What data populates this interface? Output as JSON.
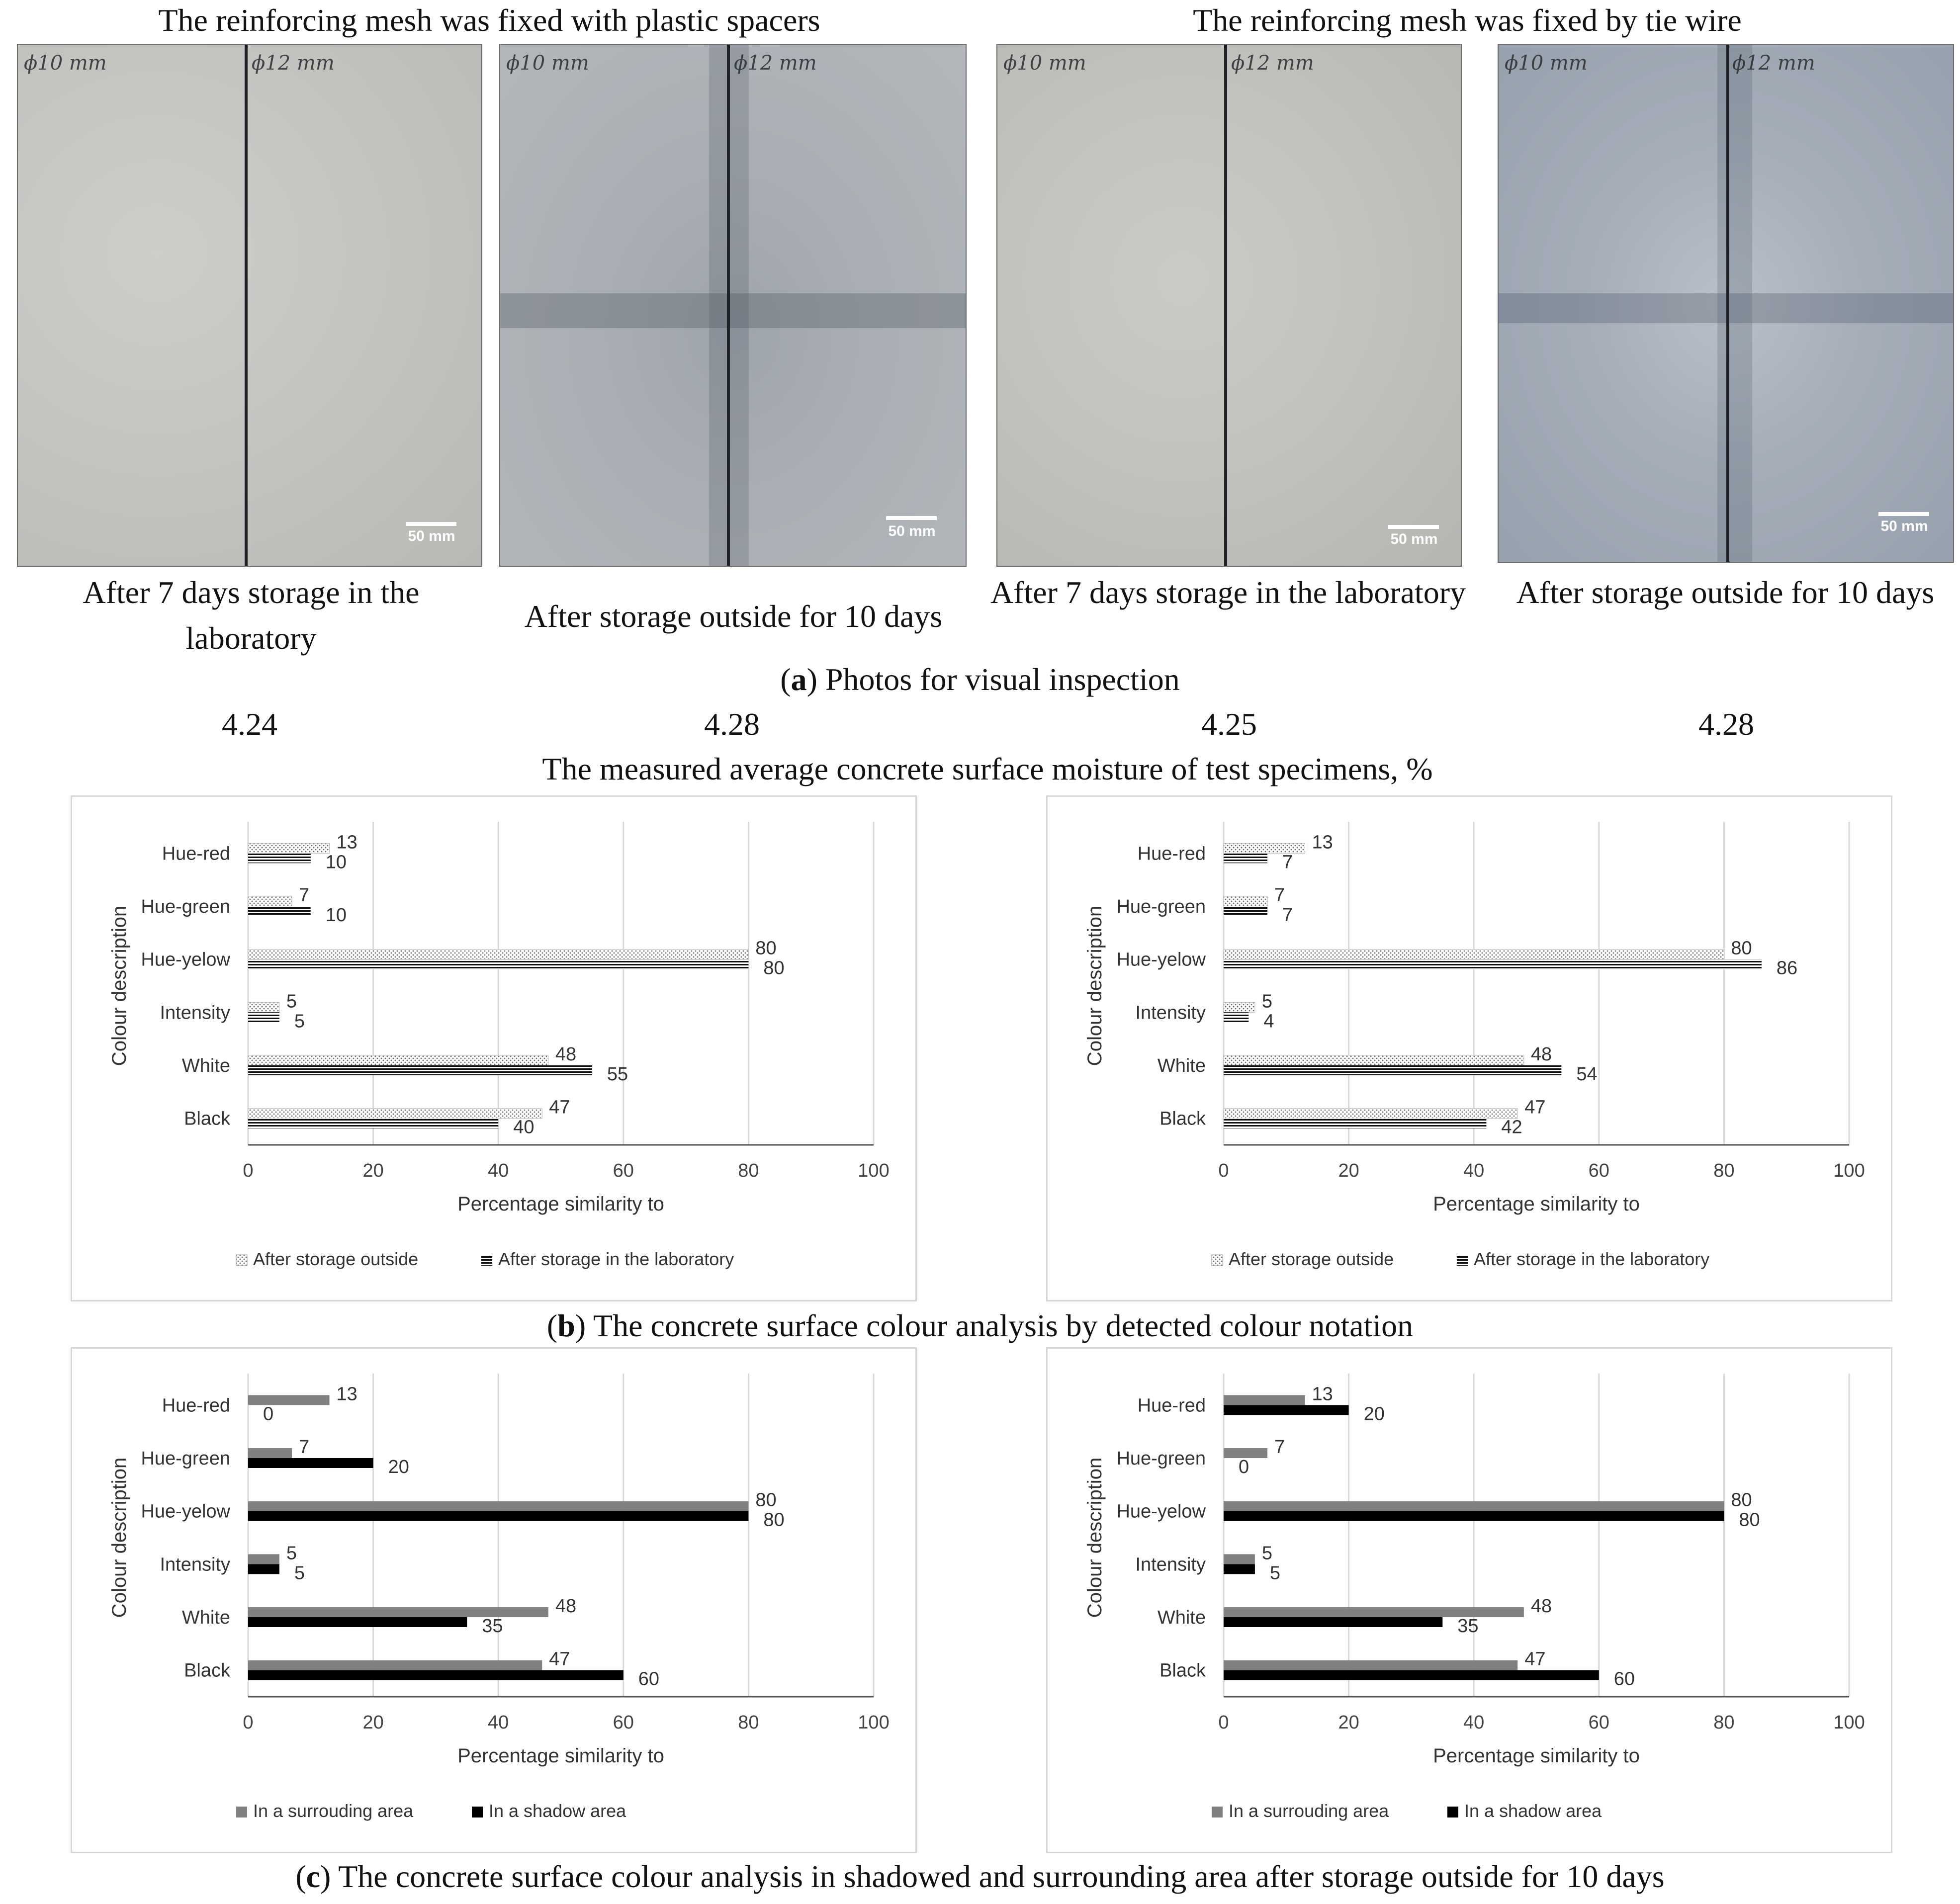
{
  "headings": {
    "left": "The reinforcing mesh was fixed with plastic spacers",
    "right": "The reinforcing mesh was fixed by tie wire"
  },
  "photos": [
    {
      "marker_left": "ϕ10 mm",
      "marker_right": "ϕ12 mm",
      "scale": "50 mm",
      "caption": "After 7 days storage in the laboratory",
      "tone": "lab"
    },
    {
      "marker_left": "ϕ10 mm",
      "marker_right": "ϕ12 mm",
      "scale": "50 mm",
      "caption": "After storage outside for 10 days",
      "tone": "outside"
    },
    {
      "marker_left": "ϕ10 mm",
      "marker_right": "ϕ12 mm",
      "scale": "50 mm",
      "caption": "After 7 days storage in the laboratory",
      "tone": "lab"
    },
    {
      "marker_left": "ϕ10 mm",
      "marker_right": "ϕ12 mm",
      "scale": "50 mm",
      "caption": "After storage outside for 10 days",
      "tone": "outside"
    }
  ],
  "panel_a": {
    "letter": "a",
    "text": ") Photos for visual inspection"
  },
  "moisture": {
    "values": [
      "4.24",
      "4.28",
      "4.25",
      "4.28"
    ],
    "label": "The measured average concrete surface moisture of test specimens, %"
  },
  "panel_b": {
    "letter": "b",
    "text": ") The concrete surface colour analysis by detected colour notation"
  },
  "panel_c": {
    "letter": "c",
    "text": ") The concrete surface colour analysis in shadowed and surrounding area after storage outside for 10 days"
  },
  "colors": {
    "dark": "#000000",
    "grey": "#808080",
    "grid": "#d9d9d9",
    "frame": "#d6d6d6"
  },
  "chart_data": [
    {
      "type": "bar",
      "orientation": "horizontal",
      "panel": "b-left",
      "categories": [
        "Hue-red",
        "Hue-green",
        "Hue-yelow",
        "Intensity",
        "White",
        "Black"
      ],
      "series": [
        {
          "name": "After storage outside",
          "pattern": "dotted",
          "values": [
            13,
            7,
            80,
            5,
            48,
            47
          ]
        },
        {
          "name": "After storage in the laboratory",
          "pattern": "striped",
          "values": [
            10,
            10,
            80,
            5,
            55,
            40
          ]
        }
      ],
      "xlabel": "Percentage similarity to",
      "ylabel": "Colour description",
      "xlim": [
        0,
        100
      ],
      "xticks": [
        0,
        20,
        40,
        60,
        80,
        100
      ],
      "grid": true,
      "legend": "bottom"
    },
    {
      "type": "bar",
      "orientation": "horizontal",
      "panel": "b-right",
      "categories": [
        "Hue-red",
        "Hue-green",
        "Hue-yelow",
        "Intensity",
        "White",
        "Black"
      ],
      "series": [
        {
          "name": "After storage outside",
          "pattern": "dotted",
          "values": [
            13,
            7,
            80,
            5,
            48,
            47
          ]
        },
        {
          "name": "After storage in the laboratory",
          "pattern": "striped",
          "values": [
            7,
            7,
            86,
            4,
            54,
            42
          ]
        }
      ],
      "xlabel": "Percentage similarity to",
      "ylabel": "Colour description",
      "xlim": [
        0,
        100
      ],
      "xticks": [
        0,
        20,
        40,
        60,
        80,
        100
      ],
      "grid": true,
      "legend": "bottom"
    },
    {
      "type": "bar",
      "orientation": "horizontal",
      "panel": "c-left",
      "categories": [
        "Hue-red",
        "Hue-green",
        "Hue-yelow",
        "Intensity",
        "White",
        "Black"
      ],
      "series": [
        {
          "name": "In a surrouding area",
          "pattern": "grey",
          "values": [
            13,
            7,
            80,
            5,
            48,
            47
          ]
        },
        {
          "name": "In a shadow area",
          "pattern": "black",
          "values": [
            0,
            20,
            80,
            5,
            35,
            60
          ]
        }
      ],
      "xlabel": "Percentage similarity to",
      "ylabel": "Colour description",
      "xlim": [
        0,
        100
      ],
      "xticks": [
        0,
        20,
        40,
        60,
        80,
        100
      ],
      "grid": true,
      "legend": "bottom"
    },
    {
      "type": "bar",
      "orientation": "horizontal",
      "panel": "c-right",
      "categories": [
        "Hue-red",
        "Hue-green",
        "Hue-yelow",
        "Intensity",
        "White",
        "Black"
      ],
      "series": [
        {
          "name": "In a surrouding area",
          "pattern": "grey",
          "values": [
            13,
            7,
            80,
            5,
            48,
            47
          ]
        },
        {
          "name": "In a shadow area",
          "pattern": "black",
          "values": [
            20,
            0,
            80,
            5,
            35,
            60
          ]
        }
      ],
      "xlabel": "Percentage similarity to",
      "ylabel": "Colour description",
      "xlim": [
        0,
        100
      ],
      "xticks": [
        0,
        20,
        40,
        60,
        80,
        100
      ],
      "grid": true,
      "legend": "bottom"
    }
  ]
}
